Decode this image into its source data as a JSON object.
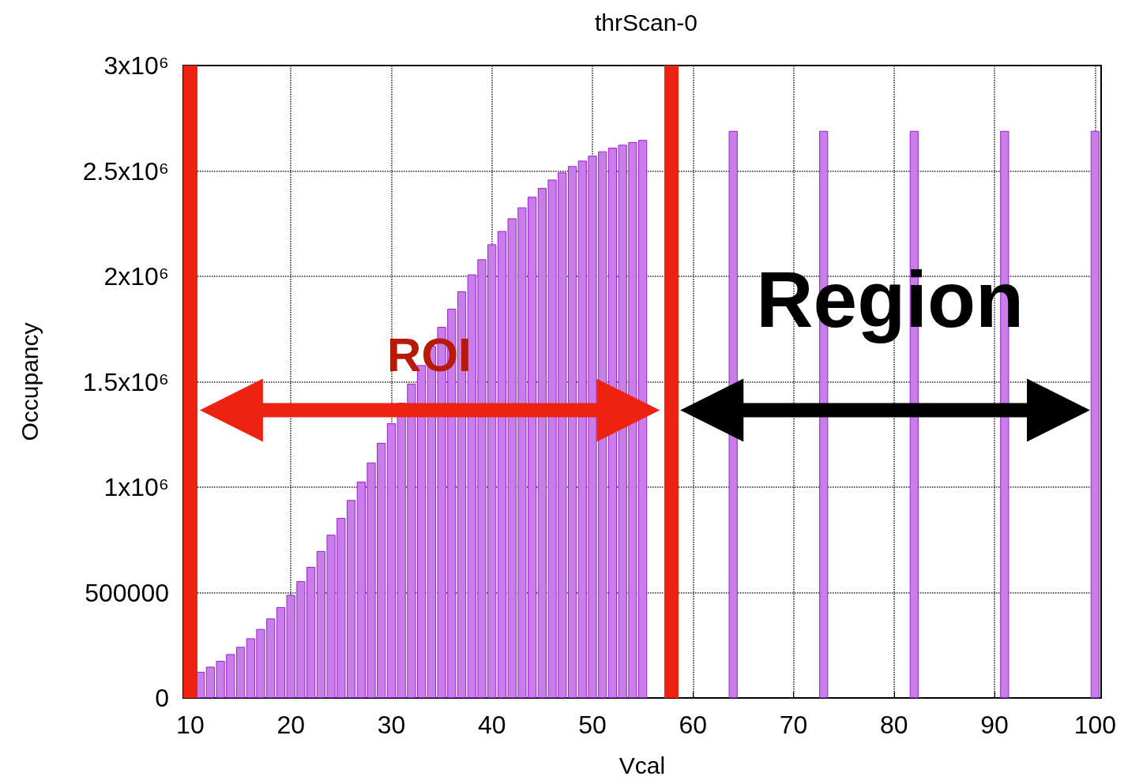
{
  "chart_data": {
    "type": "bar",
    "title": "thrScan-0",
    "xlabel": "Vcal",
    "ylabel": "Occupancy",
    "x": [
      11,
      12,
      13,
      14,
      15,
      16,
      17,
      18,
      19,
      20,
      21,
      22,
      23,
      24,
      25,
      26,
      27,
      28,
      29,
      30,
      31,
      32,
      33,
      34,
      35,
      36,
      37,
      38,
      39,
      40,
      41,
      42,
      43,
      44,
      45,
      46,
      47,
      48,
      49,
      50,
      51,
      52,
      53,
      54,
      55,
      64,
      73,
      82,
      91,
      100
    ],
    "values": [
      124000,
      148000,
      176000,
      208000,
      242000,
      283000,
      327000,
      377000,
      431000,
      489000,
      554000,
      622000,
      697000,
      774000,
      854000,
      939000,
      1026000,
      1117000,
      1210000,
      1303000,
      1400000,
      1491000,
      1579000,
      1670000,
      1760000,
      1846000,
      1929000,
      2009000,
      2081000,
      2152000,
      2215000,
      2275000,
      2327000,
      2377000,
      2419000,
      2459000,
      2493000,
      2523000,
      2549000,
      2572000,
      2593000,
      2610000,
      2624000,
      2637000,
      2647000,
      2690000,
      2690000,
      2690000,
      2690000,
      2690000
    ],
    "color": "#c97de8",
    "xlim": [
      9.3,
      100.6
    ],
    "xticks": [
      10,
      20,
      30,
      40,
      50,
      60,
      70,
      80,
      90,
      100
    ],
    "ylim": [
      0,
      3000000
    ],
    "yticks": [
      0,
      500000,
      {
        "value": 1000000,
        "label": "1x10⁶"
      },
      {
        "value": 1500000,
        "label": "1.5x10⁶"
      },
      {
        "value": 2000000,
        "label": "2x10⁶"
      },
      {
        "value": 2500000,
        "label": "2.5x10⁶"
      },
      {
        "value": 3000000,
        "label": "3x10⁶"
      }
    ],
    "grid": true,
    "ref_lines": [
      {
        "axis": "x",
        "value": 10,
        "color": "#ee2211"
      },
      {
        "axis": "x",
        "value": 57.8,
        "color": "#ee2211"
      }
    ],
    "annotations": [
      "ROI",
      "Region"
    ]
  }
}
